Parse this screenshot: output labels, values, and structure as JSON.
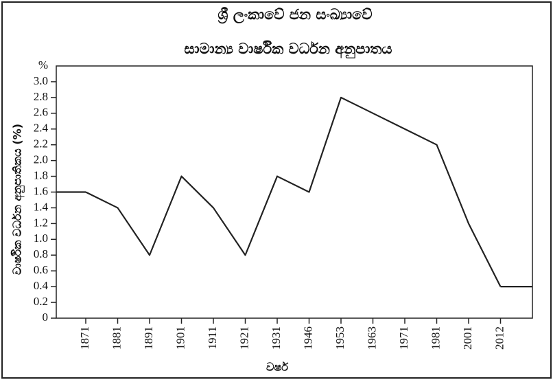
{
  "chart_data": {
    "type": "line",
    "title": [
      "ශ්‍රී ලංකාවේ ජන සංඛ්‍යාවේ",
      "සාමාන්‍ය වාර්ෂික වර්ධන අනුපාතය"
    ],
    "y_unit": "%",
    "y_label": "වාර්ෂික වර්ධන අනුපාතිකය (%)",
    "x_label": "වර්ෂ",
    "categories": [
      "1871",
      "1881",
      "1891",
      "1901",
      "1911",
      "1921",
      "1931",
      "1946",
      "1953",
      "1963",
      "1971",
      "1981",
      "2001",
      "2012"
    ],
    "values": [
      1.6,
      1.4,
      0.8,
      1.8,
      1.4,
      0.8,
      1.8,
      1.6,
      2.8,
      2.6,
      2.4,
      2.2,
      1.2,
      0.4
    ],
    "color": "#222222",
    "ylim": [
      0,
      3.2
    ],
    "yticks": [
      0,
      0.2,
      0.4,
      0.6,
      0.8,
      {
        "value": 1,
        "label": "1.0"
      },
      1.2,
      1.4,
      1.6,
      1.8,
      {
        "value": 2,
        "label": "2.0"
      },
      2.2,
      2.4,
      2.6,
      2.8,
      {
        "value": 3,
        "label": "3.0"
      }
    ]
  }
}
